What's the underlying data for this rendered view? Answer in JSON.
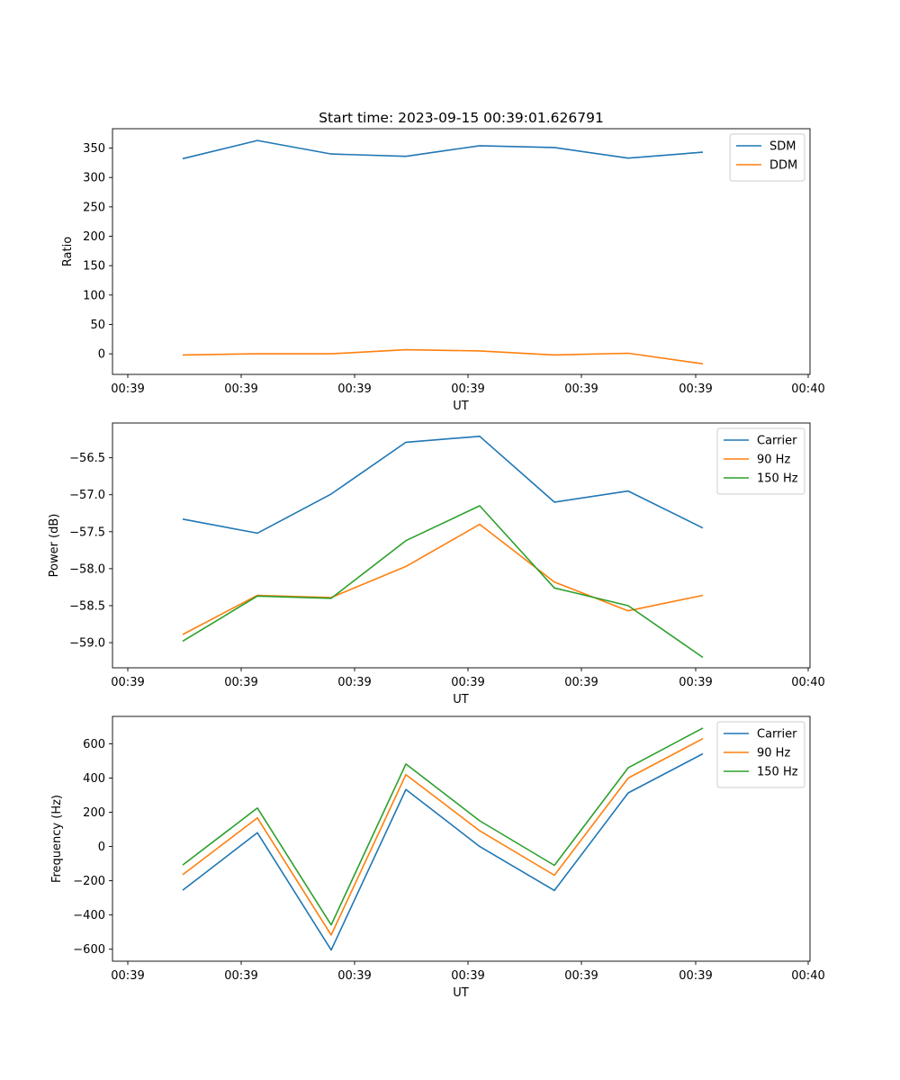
{
  "figure_title": "Start time: 2023-09-15 00:39:01.626791",
  "colors": {
    "blue": "#1f77b4",
    "orange": "#ff7f0e",
    "green": "#2ca02c"
  },
  "chart_data": [
    {
      "type": "line",
      "xlabel": "UT",
      "ylabel": "Ratio",
      "x_tick_labels": [
        "00:39",
        "00:39",
        "00:39",
        "00:39",
        "00:39",
        "00:39",
        "00:39",
        "00:40"
      ],
      "ylim": [
        -35,
        383
      ],
      "yticks": [
        0,
        50,
        100,
        150,
        200,
        250,
        300,
        350
      ],
      "y_tick_labels": [
        "0",
        "50",
        "100",
        "150",
        "200",
        "250",
        "300",
        "350"
      ],
      "legend": "top-right",
      "series": [
        {
          "name": "SDM",
          "color": "#1f77b4",
          "values": [
            332,
            363,
            340,
            336,
            354,
            351,
            333,
            343
          ]
        },
        {
          "name": "DDM",
          "color": "#ff7f0e",
          "values": [
            -2,
            0,
            0,
            7,
            5,
            -2,
            1,
            -17
          ]
        }
      ]
    },
    {
      "type": "line",
      "xlabel": "UT",
      "ylabel": "Power (dB)",
      "x_tick_labels": [
        "00:39",
        "00:39",
        "00:39",
        "00:39",
        "00:39",
        "00:39",
        "00:39",
        "00:40"
      ],
      "ylim": [
        -59.34,
        -56.03
      ],
      "yticks": [
        -59.0,
        -58.5,
        -58.0,
        -57.5,
        -57.0,
        -56.5
      ],
      "y_tick_labels": [
        "−59.0",
        "−58.5",
        "−58.0",
        "−57.5",
        "−57.0",
        "−56.5"
      ],
      "legend": "top-right",
      "series": [
        {
          "name": "Carrier",
          "color": "#1f77b4",
          "values": [
            -57.33,
            -57.52,
            -56.99,
            -56.29,
            -56.21,
            -57.1,
            -56.95,
            -57.45
          ]
        },
        {
          "name": "90 Hz",
          "color": "#ff7f0e",
          "values": [
            -58.89,
            -58.36,
            -58.39,
            -57.97,
            -57.4,
            -58.18,
            -58.57,
            -58.36
          ]
        },
        {
          "name": "150 Hz",
          "color": "#2ca02c",
          "values": [
            -58.98,
            -58.37,
            -58.4,
            -57.62,
            -57.15,
            -58.26,
            -58.5,
            -59.2
          ]
        }
      ]
    },
    {
      "type": "line",
      "xlabel": "UT",
      "ylabel": "Frequency (Hz)",
      "x_tick_labels": [
        "00:39",
        "00:39",
        "00:39",
        "00:39",
        "00:39",
        "00:39",
        "00:39",
        "00:40"
      ],
      "ylim": [
        -670,
        760
      ],
      "yticks": [
        -600,
        -400,
        -200,
        0,
        200,
        400,
        600
      ],
      "y_tick_labels": [
        "−600",
        "−400",
        "−200",
        "0",
        "200",
        "400",
        "600"
      ],
      "legend": "top-right",
      "series": [
        {
          "name": "Carrier",
          "color": "#1f77b4",
          "values": [
            -255,
            80,
            -605,
            333,
            0,
            -257,
            313,
            542
          ]
        },
        {
          "name": "90 Hz",
          "color": "#ff7f0e",
          "values": [
            -165,
            167,
            -517,
            420,
            92,
            -168,
            400,
            630
          ]
        },
        {
          "name": "150 Hz",
          "color": "#2ca02c",
          "values": [
            -108,
            225,
            -458,
            482,
            150,
            -110,
            460,
            692
          ]
        }
      ]
    }
  ]
}
